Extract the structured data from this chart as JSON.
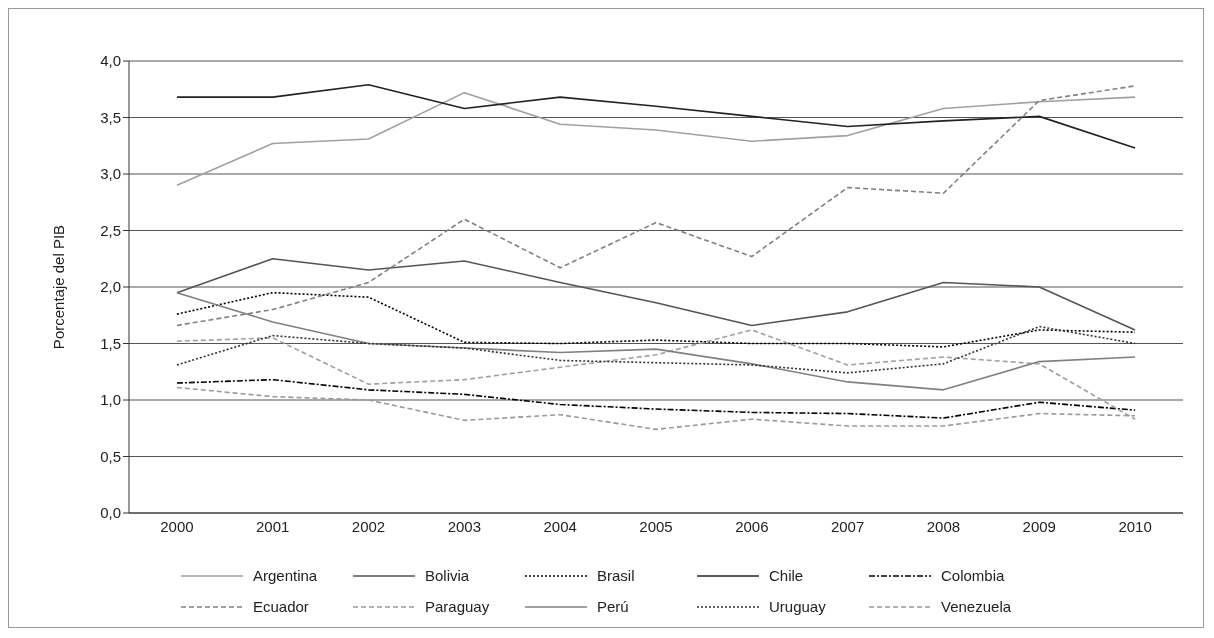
{
  "chart_data": {
    "type": "line",
    "ylabel": "Porcentaje del PIB",
    "categories": [
      "2000",
      "2001",
      "2002",
      "2003",
      "2004",
      "2005",
      "2006",
      "2007",
      "2008",
      "2009",
      "2010"
    ],
    "ylim": [
      0,
      4
    ],
    "yticks": [
      {
        "value": 0,
        "label": "0,0"
      },
      {
        "value": 0.5,
        "label": "0,5"
      },
      {
        "value": 1,
        "label": "1,0"
      },
      {
        "value": 1.5,
        "label": "1,5"
      },
      {
        "value": 2,
        "label": "2,0"
      },
      {
        "value": 2.5,
        "label": "2,5"
      },
      {
        "value": 3,
        "label": "3,0"
      },
      {
        "value": 3.5,
        "label": "3,5"
      },
      {
        "value": 4,
        "label": "4,0"
      }
    ],
    "grid": "y",
    "legend": "bottom",
    "marker": "none",
    "series": [
      {
        "name": "Argentina",
        "color": "#a0a0a0",
        "line_style": "solid",
        "values": [
          2.9,
          3.27,
          3.31,
          3.72,
          3.44,
          3.39,
          3.29,
          3.34,
          3.58,
          3.64,
          3.68
        ]
      },
      {
        "name": "Bolivia",
        "color": "#555555",
        "line_style": "solid",
        "values": [
          1.95,
          2.25,
          2.15,
          2.23,
          2.04,
          1.86,
          1.66,
          1.78,
          2.04,
          2.0,
          1.62
        ]
      },
      {
        "name": "Brasil",
        "color": "#000000",
        "line_style": "dotted",
        "values": [
          1.76,
          1.95,
          1.91,
          1.51,
          1.5,
          1.53,
          1.5,
          1.5,
          1.47,
          1.62,
          1.6
        ]
      },
      {
        "name": "Chile",
        "color": "#222222",
        "line_style": "solid",
        "values": [
          3.68,
          3.68,
          3.79,
          3.58,
          3.68,
          3.6,
          3.51,
          3.42,
          3.47,
          3.51,
          3.23
        ]
      },
      {
        "name": "Colombia",
        "color": "#000000",
        "line_style": "dashdot",
        "values": [
          1.15,
          1.18,
          1.09,
          1.05,
          0.96,
          0.92,
          0.89,
          0.88,
          0.84,
          0.98,
          0.91
        ]
      },
      {
        "name": "Ecuador",
        "color": "#808080",
        "line_style": "dashed",
        "values": [
          1.66,
          1.8,
          2.04,
          2.6,
          2.17,
          2.57,
          2.27,
          2.88,
          2.83,
          3.65,
          3.78
        ]
      },
      {
        "name": "Paraguay",
        "color": "#a0a0a0",
        "line_style": "dashed",
        "values": [
          1.52,
          1.55,
          1.14,
          1.18,
          1.29,
          1.4,
          1.62,
          1.31,
          1.38,
          1.32,
          0.83
        ]
      },
      {
        "name": "Perú",
        "color": "#808080",
        "line_style": "solid",
        "values": [
          1.95,
          1.69,
          1.5,
          1.46,
          1.42,
          1.45,
          1.32,
          1.16,
          1.09,
          1.34,
          1.38
        ]
      },
      {
        "name": "Uruguay",
        "color": "#333333",
        "line_style": "dotted",
        "values": [
          1.31,
          1.57,
          1.5,
          1.46,
          1.35,
          1.33,
          1.31,
          1.24,
          1.32,
          1.65,
          1.5
        ]
      },
      {
        "name": "Venezuela",
        "color": "#999999",
        "line_style": "dashed",
        "values": [
          1.11,
          1.03,
          1.0,
          0.82,
          0.87,
          0.74,
          0.83,
          0.77,
          0.77,
          0.88,
          0.86
        ]
      }
    ]
  }
}
